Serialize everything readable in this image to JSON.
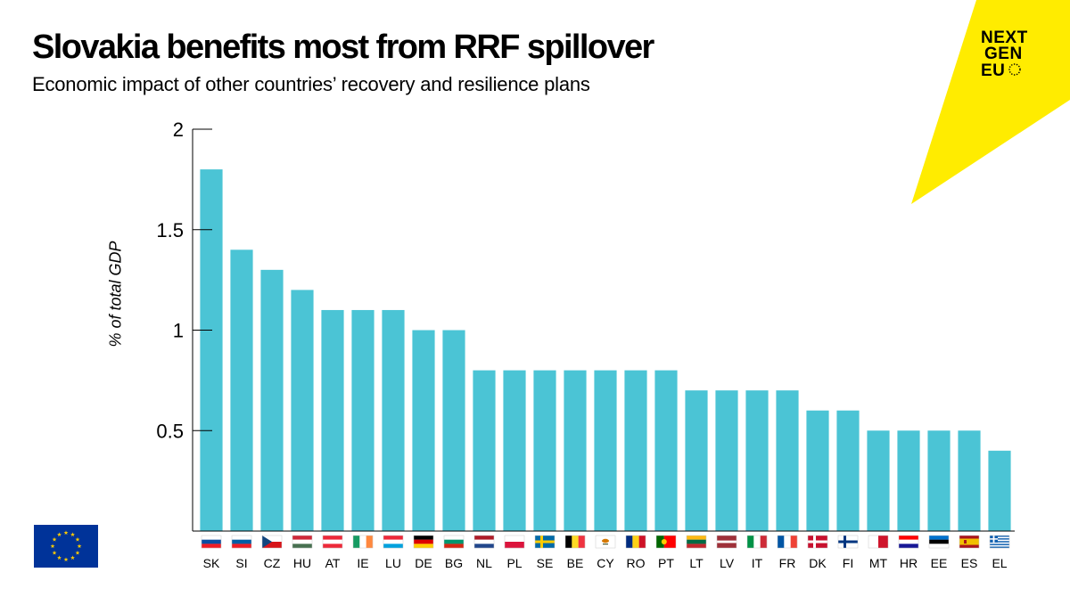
{
  "chart_data": {
    "type": "bar",
    "title": "Slovakia benefits most from RRF spillover",
    "subtitle": "Economic impact of other countries’ recovery and resilience plans",
    "xlabel": "",
    "ylabel": "% of total GDP",
    "ylim": [
      0,
      2
    ],
    "yticks": [
      0.5,
      1,
      1.5,
      2
    ],
    "ytick_labels": [
      "0.5",
      "1",
      "1.5",
      "2"
    ],
    "grid": false,
    "bar_color": "#4bc4d5",
    "categories": [
      "SK",
      "SI",
      "CZ",
      "HU",
      "AT",
      "IE",
      "LU",
      "DE",
      "BG",
      "NL",
      "PL",
      "SE",
      "BE",
      "CY",
      "RO",
      "PT",
      "LT",
      "LV",
      "IT",
      "FR",
      "DK",
      "FI",
      "MT",
      "HR",
      "EE",
      "ES",
      "EL"
    ],
    "values": [
      1.8,
      1.4,
      1.3,
      1.2,
      1.1,
      1.1,
      1.1,
      1.0,
      1.0,
      0.8,
      0.8,
      0.8,
      0.8,
      0.8,
      0.8,
      0.8,
      0.7,
      0.7,
      0.7,
      0.7,
      0.6,
      0.6,
      0.5,
      0.5,
      0.5,
      0.5,
      0.4
    ]
  },
  "logo": {
    "line1": "NEXT",
    "line2": "GEN",
    "line3": "EU",
    "background_color": "#ffec00"
  },
  "eu_flag": {
    "icon": "eu-flag-icon",
    "blue": "#003399",
    "gold": "#ffcc00"
  }
}
